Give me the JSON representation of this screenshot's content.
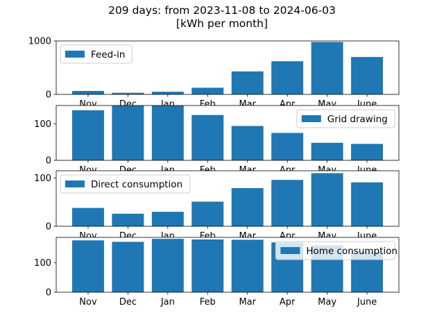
{
  "chart_data": {
    "type": "bar",
    "title_line1": "209 days: from 2023-11-08 to 2024-06-03",
    "title_line2": "[kWh per month]",
    "categories": [
      "Nov",
      "Dec",
      "Jan",
      "Feb",
      "Mar",
      "Apr",
      "May",
      "June"
    ],
    "bar_color": "#1f77b4",
    "legend_frame_color": "#cccccc",
    "grid": false,
    "subplots": [
      {
        "name": "Feed-in",
        "values": [
          65,
          30,
          50,
          125,
          430,
          620,
          980,
          700
        ],
        "ylim": [
          0,
          1000
        ],
        "yticks": [
          0,
          1000
        ],
        "legend_loc": "upper-left",
        "legend_opaque": true
      },
      {
        "name": "Grid drawing",
        "values": [
          137,
          150,
          150,
          124,
          94,
          75,
          48,
          45
        ],
        "ylim": [
          0,
          150
        ],
        "yticks": [
          0,
          100
        ],
        "legend_loc": "upper-right",
        "legend_opaque": true
      },
      {
        "name": "Direct consumption",
        "values": [
          38,
          26,
          30,
          51,
          79,
          96,
          110,
          91
        ],
        "ylim": [
          0,
          115
        ],
        "yticks": [
          0,
          100
        ],
        "legend_loc": "upper-left",
        "legend_opaque": true
      },
      {
        "name": "Home consumption",
        "values": [
          175,
          170,
          180,
          178,
          177,
          168,
          158,
          137
        ],
        "ylim": [
          0,
          185
        ],
        "yticks": [
          0,
          100
        ],
        "legend_loc": "upper-right",
        "legend_opaque": false
      }
    ]
  }
}
